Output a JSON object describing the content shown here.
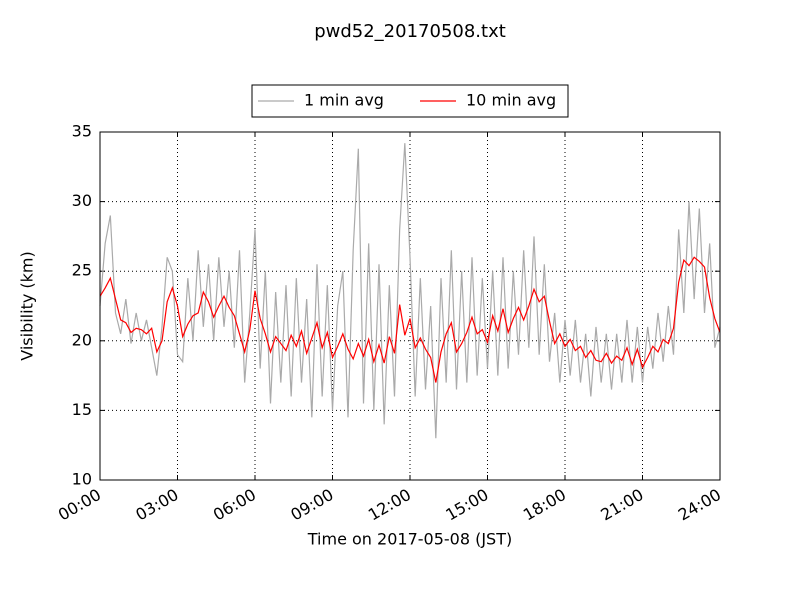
{
  "chart_data": {
    "type": "line",
    "title": "pwd52_20170508.txt",
    "xlabel": "Time on 2017-05-08 (JST)",
    "ylabel": "Visibility (km)",
    "xlim": [
      0,
      24
    ],
    "xticks": [
      {
        "value": 0,
        "label": "00:00"
      },
      {
        "value": 3,
        "label": "03:00"
      },
      {
        "value": 6,
        "label": "06:00"
      },
      {
        "value": 9,
        "label": "09:00"
      },
      {
        "value": 12,
        "label": "12:00"
      },
      {
        "value": 15,
        "label": "15:00"
      },
      {
        "value": 18,
        "label": "18:00"
      },
      {
        "value": 21,
        "label": "21:00"
      },
      {
        "value": 24,
        "label": "24:00"
      }
    ],
    "ylim": [
      10,
      35
    ],
    "yticks": [
      10,
      15,
      20,
      25,
      30,
      35
    ],
    "grid": true,
    "legend": "top",
    "x": [
      0,
      0.2,
      0.4,
      0.6,
      0.8,
      1,
      1.2,
      1.4,
      1.6,
      1.8,
      2,
      2.2,
      2.4,
      2.6,
      2.8,
      3,
      3.2,
      3.4,
      3.6,
      3.8,
      4,
      4.2,
      4.4,
      4.6,
      4.8,
      5,
      5.2,
      5.4,
      5.6,
      5.8,
      6,
      6.2,
      6.4,
      6.6,
      6.8,
      7,
      7.2,
      7.4,
      7.6,
      7.8,
      8,
      8.2,
      8.4,
      8.6,
      8.8,
      9,
      9.2,
      9.4,
      9.6,
      9.8,
      10,
      10.2,
      10.4,
      10.6,
      10.8,
      11,
      11.2,
      11.4,
      11.6,
      11.8,
      12,
      12.2,
      12.4,
      12.6,
      12.8,
      13,
      13.2,
      13.4,
      13.6,
      13.8,
      14,
      14.2,
      14.4,
      14.6,
      14.8,
      15,
      15.2,
      15.4,
      15.6,
      15.8,
      16,
      16.2,
      16.4,
      16.6,
      16.8,
      17,
      17.2,
      17.4,
      17.6,
      17.8,
      18,
      18.2,
      18.4,
      18.6,
      18.8,
      19,
      19.2,
      19.4,
      19.6,
      19.8,
      20,
      20.2,
      20.4,
      20.6,
      20.8,
      21,
      21.2,
      21.4,
      21.6,
      21.8,
      22,
      22.2,
      22.4,
      22.6,
      22.8,
      23,
      23.2,
      23.4,
      23.6,
      23.8,
      24
    ],
    "series": [
      {
        "name": "1 min avg",
        "color": "#aaaaaa",
        "values": [
          22.5,
          27,
          29,
          22,
          20.5,
          23,
          19.8,
          22,
          20,
          21.5,
          19.5,
          17.5,
          21,
          26,
          25,
          19,
          18.5,
          24.5,
          20,
          26.5,
          21,
          25.5,
          20,
          26,
          21,
          25,
          19.5,
          26.5,
          17,
          22,
          28,
          18,
          25,
          15.5,
          23.5,
          17,
          24,
          16,
          24.5,
          17,
          23,
          14.5,
          25.5,
          16,
          24,
          15,
          22.5,
          25,
          14.5,
          26.5,
          33.8,
          15.5,
          27,
          15,
          25.5,
          14,
          24,
          16,
          28,
          34.2,
          26,
          16,
          24.5,
          16.5,
          22.5,
          13,
          24.5,
          17,
          26.5,
          16.5,
          25,
          17,
          26,
          17.5,
          24.5,
          18,
          25,
          17.5,
          26,
          18,
          25,
          19,
          26.5,
          19.5,
          27.5,
          19,
          25.5,
          18.5,
          22,
          17,
          21.5,
          17.5,
          21.5,
          17,
          20.5,
          16,
          21,
          17,
          20.5,
          16.5,
          20.5,
          17,
          21.5,
          17,
          21,
          17,
          21,
          18,
          22,
          18.5,
          22.5,
          19,
          28,
          22,
          30,
          23,
          29.5,
          22,
          27,
          19.5,
          21
        ]
      },
      {
        "name": "10 min avg",
        "color": "#ff0000",
        "values": [
          23.2,
          23.8,
          24.5,
          23,
          21.5,
          21.3,
          20.6,
          20.9,
          20.8,
          20.5,
          20.9,
          19.2,
          20,
          22.8,
          23.8,
          22.5,
          20.3,
          21.2,
          21.8,
          22,
          23.5,
          22.8,
          21.7,
          22.5,
          23.2,
          22.4,
          21.8,
          20.5,
          19.2,
          20.8,
          23.6,
          21.6,
          20.5,
          19.2,
          20.3,
          19.8,
          19.3,
          20.4,
          19.6,
          20.7,
          19.1,
          20.2,
          21.3,
          19.5,
          20.6,
          18.8,
          19.6,
          20.5,
          19.4,
          18.7,
          19.8,
          18.9,
          20.1,
          18.5,
          19.7,
          18.4,
          20.3,
          19.1,
          22.6,
          20.4,
          21.6,
          19.5,
          20.2,
          19.4,
          18.8,
          17,
          19.2,
          20.5,
          21.3,
          19.2,
          19.8,
          20.6,
          21.7,
          20.5,
          20.8,
          19.9,
          21.8,
          20.7,
          22.3,
          20.6,
          21.6,
          22.4,
          21.5,
          22.5,
          23.7,
          22.8,
          23.2,
          21.4,
          19.8,
          20.5,
          19.6,
          20.1,
          19.3,
          19.6,
          18.8,
          19.3,
          18.6,
          18.5,
          19.1,
          18.4,
          18.9,
          18.6,
          19.5,
          18.3,
          19.4,
          18.1,
          18.8,
          19.6,
          19.2,
          20.1,
          19.8,
          20.9,
          24.2,
          25.8,
          25.4,
          26,
          25.7,
          25.3,
          23.1,
          21.6,
          20.6
        ]
      }
    ]
  }
}
